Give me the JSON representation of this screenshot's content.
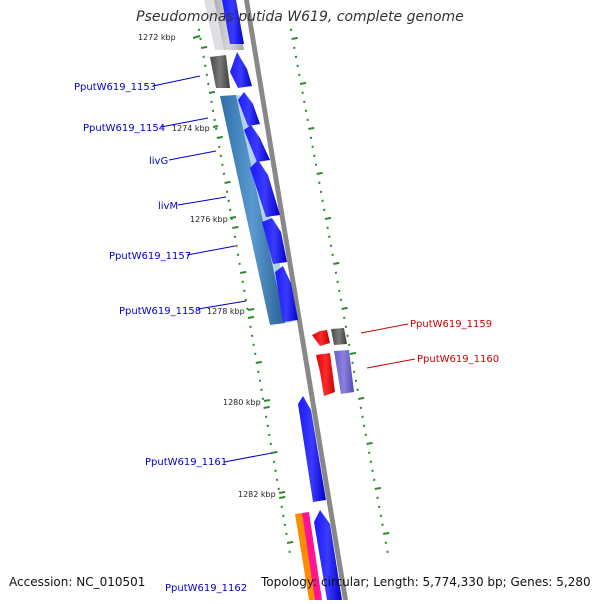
{
  "title": "Pseudomonas putida W619, complete genome",
  "footer": {
    "accession": "Accession: NC_010501",
    "topology": "Topology: circular; Length: 5,774,330 bp; Genes: 5,280"
  },
  "colors": {
    "plus_strand_gene": "#0000ff",
    "minus_strand_gene": "#ff0000",
    "plus_label": "#0000cc",
    "minus_label": "#cc0000",
    "backbone": "#888888",
    "gc_ticks": "#2e8b2e"
  },
  "scale_labels": [
    "1272 kbp",
    "1274 kbp",
    "1276 kbp",
    "1278 kbp",
    "1280 kbp",
    "1282 kbp"
  ],
  "gene_labels": [
    {
      "text": "PputW619_1153",
      "strand": "plus"
    },
    {
      "text": "PputW619_1154",
      "strand": "plus"
    },
    {
      "text": "livG",
      "strand": "plus"
    },
    {
      "text": "livM",
      "strand": "plus"
    },
    {
      "text": "PputW619_1157",
      "strand": "plus"
    },
    {
      "text": "PputW619_1158",
      "strand": "plus"
    },
    {
      "text": "PputW619_1159",
      "strand": "minus"
    },
    {
      "text": "PputW619_1160",
      "strand": "minus"
    },
    {
      "text": "PputW619_1161",
      "strand": "plus"
    },
    {
      "text": "PputW619_1162",
      "strand": "plus"
    }
  ]
}
